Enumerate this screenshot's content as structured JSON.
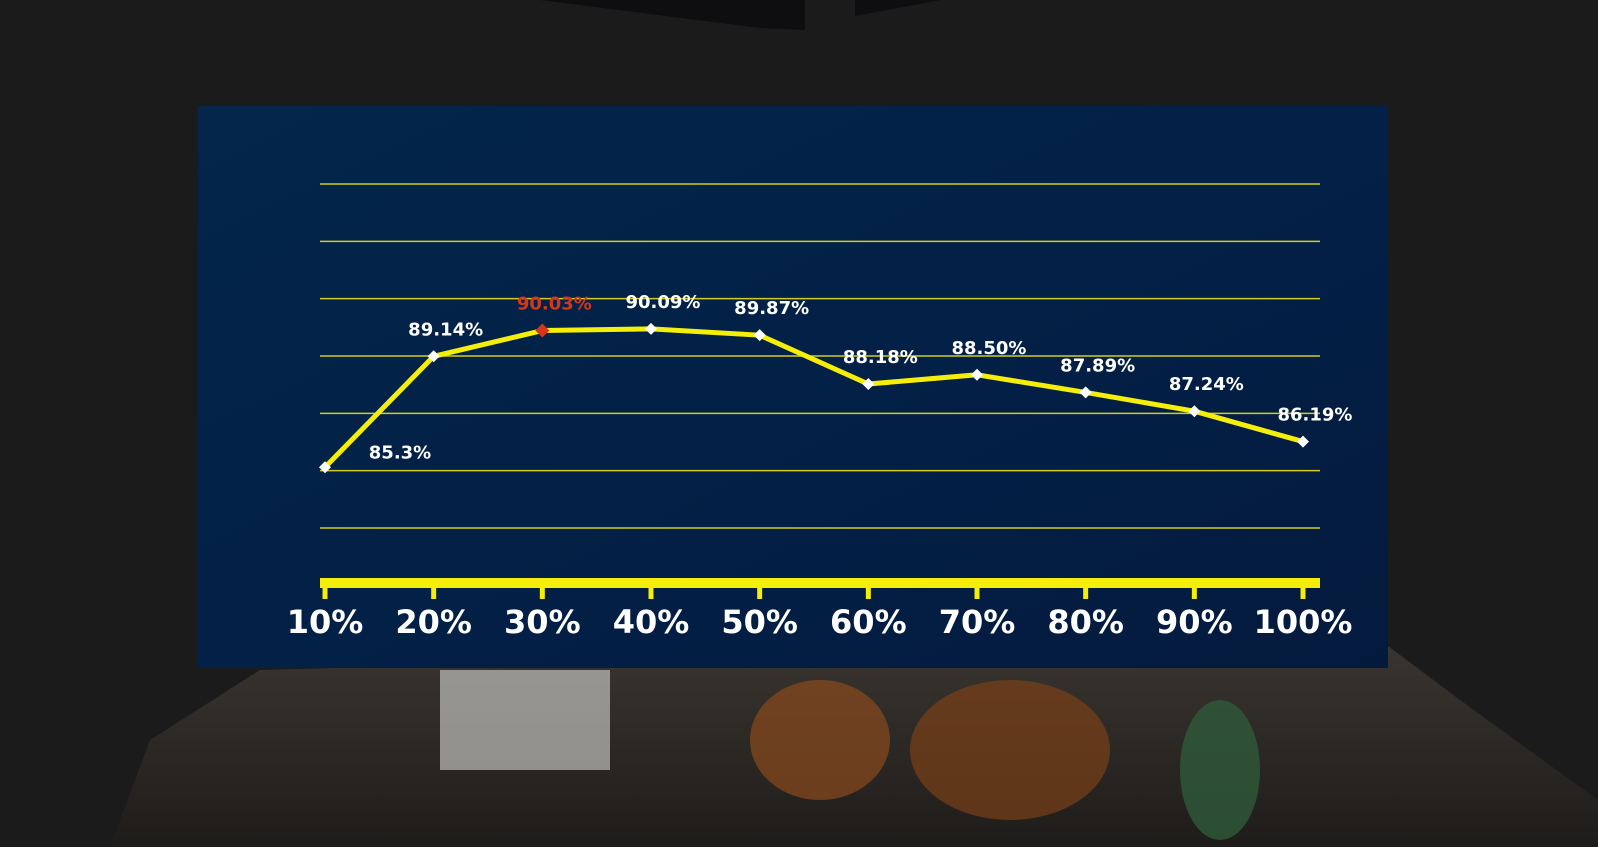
{
  "chart_data": {
    "type": "line",
    "categories": [
      "10%",
      "20%",
      "30%",
      "40%",
      "50%",
      "60%",
      "70%",
      "80%",
      "90%",
      "100%"
    ],
    "series": [
      {
        "color": "#f5ee0a",
        "highlight_color": "#d4361a",
        "highlight_index": 2,
        "values": [
          85.3,
          89.14,
          90.03,
          90.09,
          89.87,
          88.18,
          88.5,
          87.89,
          87.24,
          86.19
        ],
        "value_labels": [
          "85.3%",
          "89.14%",
          "90.03%",
          "90.09%",
          "89.87%",
          "88.18%",
          "88.50%",
          "87.89%",
          "87.24%",
          "86.19%"
        ]
      }
    ],
    "ylim": [
      83.2,
      95.1
    ],
    "grid": true
  }
}
